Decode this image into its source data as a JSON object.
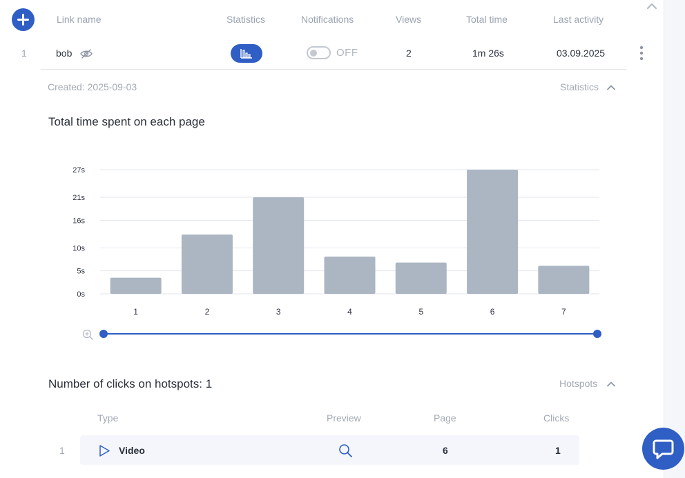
{
  "table": {
    "headers": {
      "link_name": "Link name",
      "statistics": "Statistics",
      "notifications": "Notifications",
      "views": "Views",
      "total_time": "Total time",
      "last_activity": "Last activity"
    },
    "rows": [
      {
        "index": "1",
        "name": "bob",
        "notifications": "OFF",
        "views": "2",
        "total_time": "1m 26s",
        "last_activity": "03.09.2025"
      }
    ]
  },
  "details": {
    "created": "Created: 2025-09-03",
    "statistics_toggle": "Statistics",
    "chart_title": "Total time spent on each page",
    "hotspots_title": "Number of clicks on hotspots: 1",
    "hotspots_toggle": "Hotspots"
  },
  "hotspots": {
    "headers": {
      "type": "Type",
      "preview": "Preview",
      "page": "Page",
      "clicks": "Clicks"
    },
    "rows": [
      {
        "index": "1",
        "type": "Video",
        "type_icon": "play-icon",
        "preview_icon": "search-icon",
        "page": "6",
        "clicks": "1"
      }
    ]
  },
  "colors": {
    "accent": "#2f5ec4",
    "bar": "#abb6c2",
    "grid": "#e3e6ee"
  },
  "chart_data": {
    "type": "bar",
    "title": "Total time spent on each page",
    "categories": [
      "1",
      "2",
      "3",
      "4",
      "5",
      "6",
      "7"
    ],
    "values": [
      3.5,
      12.9,
      21.0,
      8.1,
      6.8,
      27.0,
      6.1
    ],
    "unit": "s",
    "yticks": [
      0,
      5,
      10,
      16,
      21,
      27
    ],
    "ytick_labels": [
      "0s",
      "5s",
      "10s",
      "16s",
      "21s",
      "27s"
    ],
    "ylim": [
      0,
      27
    ],
    "grid": true,
    "legend": "none"
  }
}
